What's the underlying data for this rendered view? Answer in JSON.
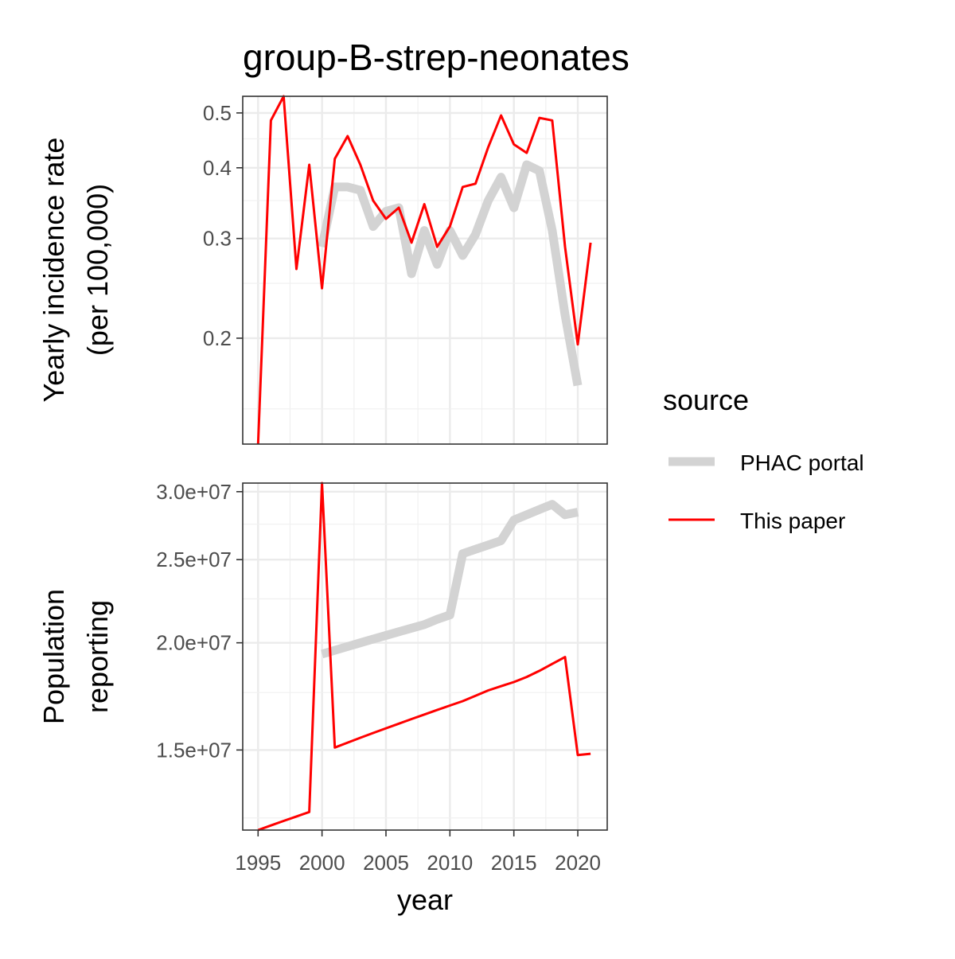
{
  "chart_data": {
    "type": "line",
    "title": "group-B-strep-neonates",
    "xlabel": "year",
    "x_ticks": [
      "1995",
      "2000",
      "2005",
      "2010",
      "2015",
      "2020"
    ],
    "xlim": [
      1993.8,
      2022.3
    ],
    "grid": true,
    "legend": {
      "title": "source",
      "position": "right",
      "entries": [
        {
          "name": "PHAC portal",
          "color": "#d3d3d3"
        },
        {
          "name": "This paper",
          "color": "#ff0000"
        }
      ]
    },
    "panels": [
      {
        "ylabel_line1": "Yearly incidence rate",
        "ylabel_line2": "(per 100,000)",
        "y_scale": "log",
        "ylim": [
          0.13,
          0.535
        ],
        "y_ticks": [
          "0.2",
          "0.3",
          "0.4",
          "0.5"
        ],
        "series": [
          {
            "name": "PHAC portal",
            "x": [
              2000,
              2001,
              2002,
              2003,
              2004,
              2005,
              2006,
              2007,
              2008,
              2009,
              2010,
              2011,
              2012,
              2013,
              2014,
              2015,
              2016,
              2017,
              2018,
              2019,
              2020
            ],
            "y": [
              0.29,
              0.37,
              0.37,
              0.365,
              0.315,
              0.335,
              0.34,
              0.26,
              0.31,
              0.27,
              0.31,
              0.28,
              0.305,
              0.35,
              0.385,
              0.34,
              0.405,
              0.395,
              0.31,
              0.22,
              0.165
            ]
          },
          {
            "name": "This paper",
            "x": [
              1995,
              1996,
              1997,
              1998,
              1999,
              2000,
              2001,
              2002,
              2003,
              2004,
              2005,
              2006,
              2007,
              2008,
              2009,
              2010,
              2011,
              2012,
              2013,
              2014,
              2015,
              2016,
              2017,
              2018,
              2019,
              2020,
              2021
            ],
            "y": [
              0.13,
              0.485,
              0.535,
              0.265,
              0.405,
              0.245,
              0.415,
              0.455,
              0.405,
              0.35,
              0.325,
              0.34,
              0.295,
              0.345,
              0.29,
              0.315,
              0.37,
              0.375,
              0.435,
              0.495,
              0.44,
              0.425,
              0.49,
              0.485,
              0.29,
              0.195,
              0.295
            ]
          }
        ]
      },
      {
        "ylabel_line1": "Population",
        "ylabel_line2": "reporting",
        "y_scale": "log",
        "ylim": [
          12100000,
          30700000
        ],
        "y_ticks": [
          "1.5e+07",
          "2.0e+07",
          "2.5e+07",
          "3.0e+07"
        ],
        "series": [
          {
            "name": "PHAC portal",
            "x": [
              2000,
              2001,
              2002,
              2003,
              2004,
              2005,
              2006,
              2007,
              2008,
              2009,
              2010,
              2011,
              2012,
              2013,
              2014,
              2015,
              2016,
              2017,
              2018,
              2019,
              2020
            ],
            "y": [
              19400000,
              19600000,
              19800000,
              20000000,
              20200000,
              20400000,
              20600000,
              20800000,
              21000000,
              21300000,
              21550000,
              25400000,
              25700000,
              26000000,
              26300000,
              27800000,
              28200000,
              28600000,
              29000000,
              28200000,
              28400000
            ]
          },
          {
            "name": "This paper",
            "x": [
              1995,
              1996,
              1997,
              1998,
              1999,
              2000,
              2001,
              2002,
              2003,
              2004,
              2005,
              2006,
              2007,
              2008,
              2009,
              2010,
              2011,
              2012,
              2013,
              2014,
              2015,
              2016,
              2017,
              2018,
              2019,
              2020,
              2021
            ],
            "y": [
              12100000,
              12250000,
              12400000,
              12550000,
              12700000,
              30700000,
              15100000,
              15300000,
              15500000,
              15700000,
              15900000,
              16100000,
              16300000,
              16500000,
              16700000,
              16900000,
              17100000,
              17350000,
              17600000,
              17800000,
              18000000,
              18250000,
              18550000,
              18900000,
              19250000,
              14800000,
              14850000
            ]
          }
        ]
      }
    ]
  }
}
